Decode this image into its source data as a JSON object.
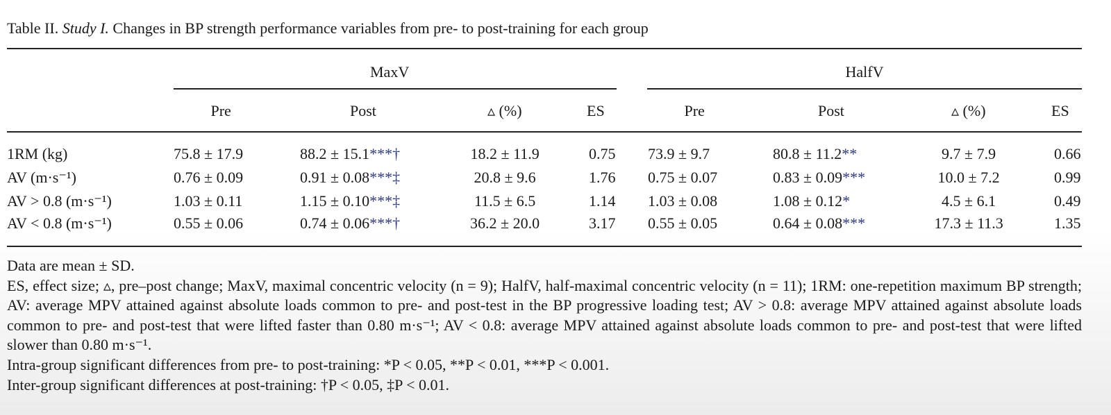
{
  "caption": {
    "label": "Table II.",
    "study": "Study I.",
    "text": "Changes in BP strength performance variables from pre- to post-training for each group"
  },
  "table": {
    "groups": [
      "MaxV",
      "HalfV"
    ],
    "columns": [
      "Pre",
      "Post",
      "▵ (%)",
      "ES",
      "Pre",
      "Post",
      "▵ (%)",
      "ES"
    ],
    "rows": [
      {
        "label": "1RM (kg)",
        "cells": [
          "75.8 ± 17.9",
          "88.2 ± 15.1",
          "18.2 ± 11.9",
          "0.75",
          "73.9 ± 9.7",
          "80.8 ± 11.2",
          "9.7 ± 7.9",
          "0.66"
        ],
        "sig": {
          "1": "***†",
          "5": "**"
        }
      },
      {
        "label": "AV (m·s⁻¹)",
        "cells": [
          "0.76 ± 0.09",
          "0.91 ± 0.08",
          "20.8 ± 9.6",
          "1.76",
          "0.75 ± 0.07",
          "0.83 ± 0.09",
          "10.0 ± 7.2",
          "0.99"
        ],
        "sig": {
          "1": "***‡",
          "5": "***"
        }
      },
      {
        "label": "AV > 0.8 (m·s⁻¹)",
        "cells": [
          "1.03 ± 0.11",
          "1.15 ± 0.10",
          "11.5 ± 6.5",
          "1.14",
          "1.03 ± 0.08",
          "1.08 ± 0.12",
          "4.5 ± 6.1",
          "0.49"
        ],
        "sig": {
          "1": "***‡",
          "5": "*"
        }
      },
      {
        "label": "AV < 0.8 (m·s⁻¹)",
        "cells": [
          "0.55 ± 0.06",
          "0.74 ± 0.06",
          "36.2 ± 20.0",
          "3.17",
          "0.55 ± 0.05",
          "0.64 ± 0.08",
          "17.3 ± 11.3",
          "1.35"
        ],
        "sig": {
          "1": "***†",
          "5": "***"
        }
      }
    ]
  },
  "footnotes": [
    "Data are mean ± SD.",
    "ES, effect size; ▵, pre–post change; MaxV, maximal concentric velocity (n = 9); HalfV, half-maximal concentric velocity (n = 11); 1RM: one-repetition maximum BP strength; AV: average MPV attained against absolute loads common to pre- and post-test in the BP progressive loading test; AV > 0.8: average MPV attained against absolute loads common to pre- and post-test that were lifted faster than 0.80 m·s⁻¹; AV < 0.8: average MPV attained against absolute loads common to pre- and post-test that were lifted slower than 0.80 m·s⁻¹.",
    "Intra-group significant differences from pre- to post-training: *P < 0.05, **P < 0.01, ***P < 0.001.",
    "Inter-group significant differences at post-training: †P < 0.05, ‡P < 0.01."
  ]
}
